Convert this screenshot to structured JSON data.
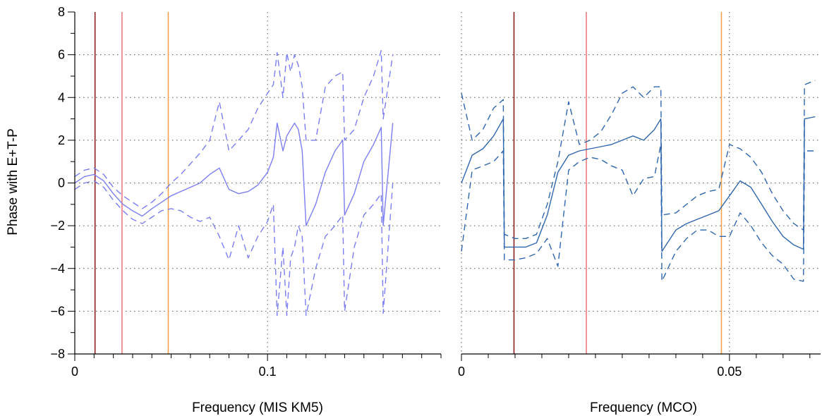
{
  "chart_data": [
    {
      "type": "line",
      "panel": "left",
      "xlabel": "Frequency (MIS KM5)",
      "ylabel": "Phase with E+T-P",
      "xlim": [
        0,
        0.19
      ],
      "ylim": [
        -8,
        8
      ],
      "x_ticks": [
        0,
        0.1
      ],
      "x_tick_labels": [
        "0",
        "0.1"
      ],
      "y_ticks": [
        -8,
        -6,
        -4,
        -2,
        0,
        2,
        4,
        6,
        8
      ],
      "y_tick_labels": [
        "−8",
        "−6",
        "−4",
        "−2",
        "0",
        "2",
        "4",
        "6",
        "8"
      ],
      "grid": "dotted",
      "reference_lines": [
        {
          "x": 0.0105,
          "color": "#8b1f1f"
        },
        {
          "x": 0.0245,
          "color": "#f07a82"
        },
        {
          "x": 0.0485,
          "color": "#f2a24a"
        }
      ],
      "series": [
        {
          "role": "estimate",
          "style": "solid",
          "color": "#7b7ef2",
          "x": [
            0,
            0.005,
            0.01,
            0.015,
            0.02,
            0.025,
            0.03,
            0.035,
            0.04,
            0.045,
            0.05,
            0.055,
            0.06,
            0.065,
            0.07,
            0.075,
            0.08,
            0.085,
            0.09,
            0.095,
            0.1,
            0.103,
            0.105,
            0.108,
            0.11,
            0.112,
            0.114,
            0.116,
            0.118,
            0.12,
            0.125,
            0.13,
            0.135,
            0.139,
            0.14,
            0.145,
            0.15,
            0.155,
            0.159,
            0.16,
            0.165
          ],
          "values": [
            0.0,
            0.3,
            0.4,
            0.1,
            -0.5,
            -1.0,
            -1.3,
            -1.55,
            -1.2,
            -0.9,
            -0.6,
            -0.4,
            -0.2,
            0.0,
            0.4,
            0.7,
            -0.3,
            -0.5,
            -0.4,
            -0.1,
            0.5,
            1.2,
            2.8,
            1.5,
            2.2,
            2.5,
            2.8,
            2.5,
            1.5,
            -2.0,
            -1.0,
            0.5,
            1.5,
            2.0,
            -1.5,
            -0.5,
            1.0,
            1.8,
            2.6,
            -2.0,
            2.8
          ]
        },
        {
          "role": "upper bound",
          "style": "dashed",
          "color": "#7b7ef2",
          "x": [
            0,
            0.005,
            0.01,
            0.015,
            0.02,
            0.025,
            0.03,
            0.035,
            0.04,
            0.045,
            0.05,
            0.055,
            0.06,
            0.065,
            0.07,
            0.075,
            0.08,
            0.085,
            0.09,
            0.095,
            0.1,
            0.103,
            0.105,
            0.108,
            0.11,
            0.112,
            0.114,
            0.116,
            0.118,
            0.12,
            0.125,
            0.13,
            0.135,
            0.139,
            0.14,
            0.145,
            0.15,
            0.155,
            0.159,
            0.16,
            0.165
          ],
          "values": [
            0.3,
            0.6,
            0.7,
            0.4,
            -0.2,
            -0.6,
            -0.9,
            -1.2,
            -0.9,
            -0.5,
            0.0,
            0.4,
            0.9,
            1.4,
            2.0,
            3.8,
            1.5,
            2.0,
            2.5,
            3.5,
            4.2,
            4.6,
            6.1,
            4.0,
            6.1,
            5.2,
            6.0,
            5.5,
            4.5,
            2.0,
            2.0,
            4.5,
            5.0,
            5.2,
            2.0,
            2.5,
            4.0,
            5.0,
            6.2,
            3.0,
            6.0
          ]
        },
        {
          "role": "lower bound",
          "style": "dashed",
          "color": "#7b7ef2",
          "x": [
            0,
            0.005,
            0.01,
            0.015,
            0.02,
            0.025,
            0.03,
            0.035,
            0.04,
            0.045,
            0.05,
            0.055,
            0.06,
            0.065,
            0.07,
            0.075,
            0.08,
            0.085,
            0.09,
            0.095,
            0.1,
            0.103,
            0.105,
            0.108,
            0.11,
            0.112,
            0.114,
            0.116,
            0.118,
            0.12,
            0.125,
            0.13,
            0.135,
            0.139,
            0.14,
            0.145,
            0.15,
            0.155,
            0.159,
            0.16,
            0.165
          ],
          "values": [
            -0.3,
            0.0,
            0.1,
            -0.2,
            -0.8,
            -1.3,
            -1.7,
            -1.9,
            -1.6,
            -1.3,
            -1.2,
            -1.3,
            -1.6,
            -1.8,
            -1.6,
            -2.5,
            -3.6,
            -2.0,
            -3.5,
            -2.5,
            -1.8,
            -1.0,
            -6.2,
            -3.0,
            -6.2,
            -3.5,
            -3.0,
            -2.0,
            -2.5,
            -6.2,
            -4.0,
            -2.5,
            -2.0,
            -1.5,
            -6.0,
            -3.0,
            -1.5,
            -1.0,
            -0.5,
            -6.1,
            0.0
          ]
        }
      ]
    },
    {
      "type": "line",
      "panel": "right",
      "xlabel": "Frequency (MCO)",
      "ylabel": "",
      "xlim": [
        0,
        0.067
      ],
      "ylim": [
        -8,
        8
      ],
      "x_ticks": [
        0,
        0.05
      ],
      "x_tick_labels": [
        "0",
        "0.05"
      ],
      "grid": "dotted",
      "reference_lines": [
        {
          "x": 0.0098,
          "color": "#8b1f1f"
        },
        {
          "x": 0.0233,
          "color": "#f07a82"
        },
        {
          "x": 0.0485,
          "color": "#f2a24a"
        }
      ],
      "series": [
        {
          "role": "estimate",
          "style": "solid",
          "color": "#2f66ad",
          "x": [
            0,
            0.002,
            0.004,
            0.006,
            0.0078,
            0.008,
            0.01,
            0.012,
            0.014,
            0.016,
            0.018,
            0.02,
            0.022,
            0.024,
            0.026,
            0.028,
            0.03,
            0.032,
            0.034,
            0.036,
            0.0372,
            0.0374,
            0.04,
            0.042,
            0.044,
            0.046,
            0.048,
            0.05,
            0.052,
            0.054,
            0.056,
            0.058,
            0.06,
            0.062,
            0.0638,
            0.064,
            0.066
          ],
          "values": [
            0.0,
            1.3,
            1.6,
            2.2,
            3.0,
            -3.0,
            -3.0,
            -3.0,
            -2.8,
            -1.5,
            0.5,
            1.3,
            1.5,
            1.6,
            1.7,
            1.8,
            2.0,
            2.2,
            2.0,
            2.5,
            3.0,
            -3.2,
            -2.2,
            -1.9,
            -1.7,
            -1.5,
            -1.3,
            -0.6,
            0.1,
            -0.2,
            -1.0,
            -1.8,
            -2.5,
            -2.9,
            -3.1,
            3.0,
            3.1
          ]
        },
        {
          "role": "upper bound",
          "style": "dashed",
          "color": "#2f66ad",
          "x": [
            0,
            0.002,
            0.004,
            0.006,
            0.0078,
            0.008,
            0.01,
            0.012,
            0.014,
            0.016,
            0.018,
            0.02,
            0.022,
            0.024,
            0.026,
            0.028,
            0.03,
            0.032,
            0.034,
            0.036,
            0.0372,
            0.0374,
            0.04,
            0.042,
            0.044,
            0.046,
            0.048,
            0.05,
            0.052,
            0.054,
            0.056,
            0.058,
            0.06,
            0.062,
            0.0638,
            0.064,
            0.066
          ],
          "values": [
            4.2,
            2.0,
            2.5,
            3.5,
            3.9,
            -2.4,
            -2.6,
            -2.6,
            -2.4,
            -1.0,
            1.0,
            3.8,
            1.8,
            2.0,
            2.4,
            3.2,
            4.2,
            4.5,
            4.0,
            4.5,
            4.5,
            -1.5,
            -1.4,
            -1.0,
            -0.6,
            -0.4,
            -0.3,
            1.8,
            1.6,
            1.2,
            0.5,
            -0.5,
            -1.3,
            -1.9,
            -2.2,
            4.6,
            4.8
          ]
        },
        {
          "role": "lower bound",
          "style": "dashed",
          "color": "#2f66ad",
          "x": [
            0,
            0.002,
            0.004,
            0.006,
            0.0078,
            0.008,
            0.01,
            0.012,
            0.014,
            0.016,
            0.018,
            0.02,
            0.022,
            0.024,
            0.026,
            0.028,
            0.03,
            0.032,
            0.034,
            0.036,
            0.0372,
            0.0374,
            0.04,
            0.042,
            0.044,
            0.046,
            0.048,
            0.05,
            0.052,
            0.054,
            0.056,
            0.058,
            0.06,
            0.062,
            0.0638,
            0.064,
            0.066
          ],
          "values": [
            -3.2,
            0.6,
            0.8,
            1.0,
            1.5,
            -3.6,
            -3.6,
            -3.5,
            -3.3,
            -2.6,
            -3.9,
            0.6,
            1.0,
            1.2,
            1.1,
            0.8,
            0.6,
            -0.6,
            0.2,
            0.3,
            1.8,
            -4.6,
            -3.2,
            -2.6,
            -2.2,
            -2.2,
            -2.5,
            -2.5,
            -1.4,
            -2.0,
            -2.8,
            -3.4,
            -3.8,
            -4.5,
            -4.6,
            1.5,
            1.5
          ]
        }
      ]
    }
  ]
}
